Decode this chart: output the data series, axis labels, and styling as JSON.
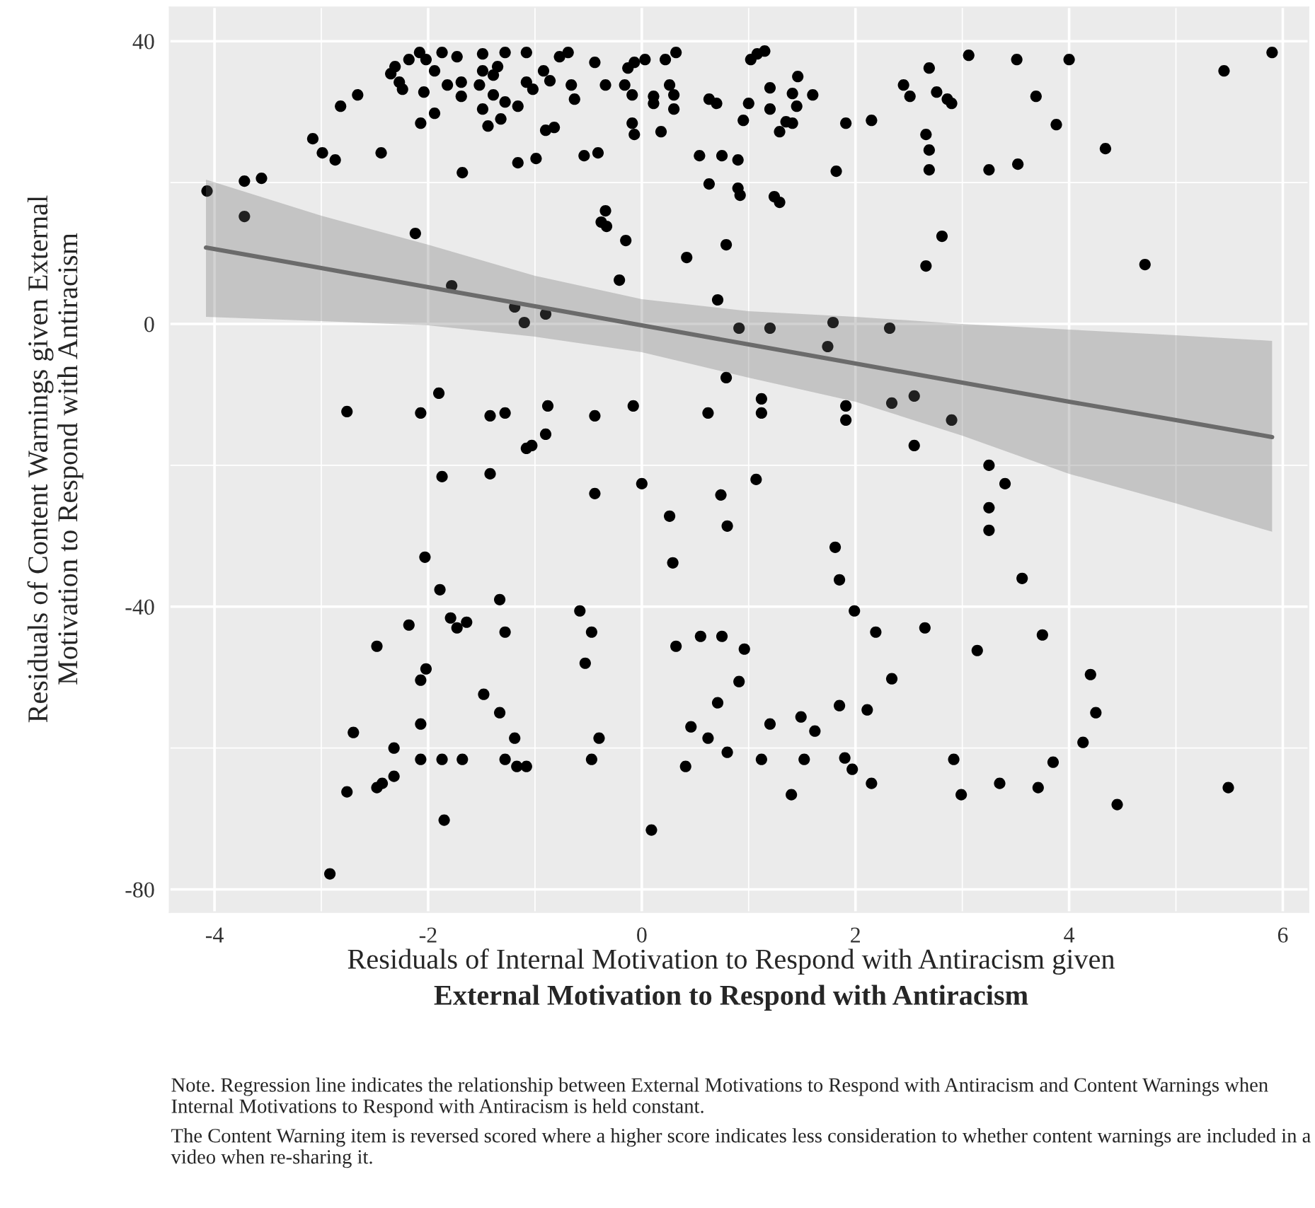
{
  "chart_data": {
    "type": "scatter",
    "xlabel": "Residuals of Internal Motivation to Respond with Antiracism given\nExternal Motivation to Respond with Antiracism",
    "ylabel": "Residuals of Content Warnings given External\nMotivation to Respond with Antiracism",
    "xlim": [
      -4.42,
      6.24
    ],
    "xticks": [
      -4,
      -2,
      0,
      2,
      4,
      6
    ],
    "ylim": [
      -83.2,
      44.8
    ],
    "yticks": [
      -80,
      -40,
      0,
      40
    ],
    "grid": true,
    "marker": "circle",
    "series": [
      {
        "color": "#000000",
        "x": [
          -4.07,
          -3.72,
          -3.56,
          -3.72,
          -3.08,
          -2.99,
          -2.87,
          -2.82,
          -2.66,
          -2.44,
          -2.12,
          -1.78,
          -1.68,
          -1.16,
          -0.99,
          -1.19,
          -1.1,
          -0.9,
          -2.35,
          -2.31,
          -2.27,
          -2.24,
          -2.18,
          -2.08,
          -2.02,
          -1.94,
          -2.04,
          -1.87,
          -1.73,
          -1.82,
          -1.69,
          -1.69,
          -1.94,
          -2.07,
          -1.49,
          -1.49,
          -1.52,
          -1.39,
          -1.35,
          -1.28,
          -1.39,
          -1.28,
          -1.49,
          -1.32,
          -1.44,
          -1.16,
          -1.08,
          -1.08,
          -1.02,
          -0.92,
          -0.9,
          -0.77,
          -0.69,
          -0.86,
          -0.44,
          -0.66,
          -0.63,
          -0.34,
          -0.13,
          -0.07,
          0.03,
          -0.16,
          -0.09,
          0.11,
          0.11,
          0.22,
          0.32,
          0.26,
          0.3,
          0.3,
          -0.82,
          -0.09,
          -0.07,
          0.18,
          -0.54,
          -0.41,
          -0.34,
          -0.38,
          -0.33,
          -0.15,
          -0.21,
          0.42,
          0.79,
          0.71,
          0.63,
          0.7,
          0.54,
          0.75,
          0.9,
          0.63,
          0.9,
          0.92,
          1.24,
          1.29,
          1.02,
          1.08,
          1.15,
          1.0,
          0.95,
          1.2,
          1.2,
          1.41,
          1.46,
          1.45,
          1.6,
          1.35,
          1.41,
          1.29,
          1.82,
          1.91,
          2.15,
          2.45,
          2.51,
          2.69,
          2.66,
          2.69,
          2.69,
          2.66,
          0.91,
          1.2,
          1.79,
          1.74,
          2.32,
          3.06,
          3.51,
          4.0,
          5.9,
          5.45,
          2.76,
          2.86,
          2.9,
          3.69,
          3.88,
          4.34,
          3.25,
          3.52,
          2.81,
          4.71,
          -2.76,
          -2.07,
          -1.9,
          -1.42,
          -1.28,
          -0.88,
          -0.9,
          -1.08,
          -1.03,
          -1.87,
          -1.42,
          -2.03,
          -1.89,
          -1.33,
          -2.18,
          -1.79,
          -1.73,
          -1.64,
          -1.28,
          -2.48,
          -2.02,
          -2.07,
          -1.48,
          -1.33,
          -1.19,
          -2.7,
          -2.32,
          -2.07,
          -2.07,
          -1.87,
          -1.68,
          -1.28,
          -1.17,
          -1.08,
          -2.32,
          -2.43,
          -2.48,
          -2.76,
          -1.85,
          -2.92,
          -0.44,
          -0.08,
          0.62,
          0.79,
          1.12,
          1.12,
          1.91,
          1.91,
          2.34,
          2.55,
          2.55,
          -0.44,
          0.0,
          0.74,
          1.07,
          0.26,
          0.8,
          0.29,
          1.81,
          1.85,
          -0.58,
          -0.47,
          -0.53,
          1.99,
          2.19,
          2.65,
          0.32,
          0.55,
          0.75,
          0.96,
          0.91,
          2.34,
          0.71,
          1.85,
          2.11,
          1.49,
          1.62,
          1.2,
          0.46,
          0.62,
          -0.4,
          -0.47,
          0.41,
          0.8,
          1.12,
          1.52,
          1.9,
          1.97,
          2.15,
          1.4,
          0.09,
          2.9,
          3.25,
          3.4,
          3.25,
          3.25,
          3.56,
          3.75,
          3.14,
          4.2,
          4.25,
          4.13,
          2.92,
          3.85,
          2.99,
          3.35,
          3.71,
          4.45,
          5.49
        ],
        "values": [
          18.8,
          20.2,
          20.6,
          15.2,
          26.2,
          24.2,
          23.2,
          30.8,
          32.4,
          24.2,
          12.8,
          5.4,
          21.4,
          22.8,
          23.4,
          2.4,
          0.2,
          1.4,
          35.4,
          36.4,
          34.2,
          33.2,
          37.4,
          38.4,
          37.4,
          35.8,
          32.8,
          38.4,
          37.8,
          33.8,
          34.2,
          32.2,
          29.8,
          28.4,
          38.2,
          35.8,
          33.8,
          35.2,
          36.4,
          38.4,
          32.4,
          31.4,
          30.4,
          29.0,
          28.0,
          30.8,
          38.4,
          34.2,
          33.2,
          35.8,
          27.4,
          37.8,
          38.4,
          34.4,
          37.0,
          33.8,
          31.8,
          33.8,
          36.2,
          37.0,
          37.4,
          33.8,
          32.4,
          32.2,
          31.2,
          37.4,
          38.4,
          33.8,
          32.4,
          30.4,
          27.8,
          28.4,
          26.8,
          27.2,
          23.8,
          24.2,
          16.0,
          14.4,
          13.8,
          11.8,
          6.2,
          9.4,
          11.2,
          3.4,
          31.8,
          31.2,
          23.8,
          23.8,
          23.2,
          19.8,
          19.2,
          18.2,
          18.0,
          17.2,
          37.4,
          38.2,
          38.6,
          31.2,
          28.8,
          33.4,
          30.4,
          32.6,
          35.0,
          30.8,
          32.4,
          28.6,
          28.4,
          27.2,
          21.6,
          28.4,
          28.8,
          33.8,
          32.2,
          36.2,
          26.8,
          24.6,
          21.8,
          8.2,
          -0.6,
          -0.6,
          0.2,
          -3.2,
          -0.6,
          38.0,
          37.4,
          37.4,
          38.4,
          35.8,
          32.8,
          31.8,
          31.2,
          32.2,
          28.2,
          24.8,
          21.8,
          22.6,
          12.4,
          8.4,
          -12.4,
          -12.6,
          -9.8,
          -13.0,
          -12.6,
          -11.6,
          -15.6,
          -17.6,
          -17.2,
          -21.6,
          -21.2,
          -33.0,
          -37.6,
          -39.0,
          -42.6,
          -41.6,
          -43.0,
          -42.2,
          -43.6,
          -45.6,
          -48.8,
          -50.4,
          -52.4,
          -55.0,
          -58.6,
          -57.8,
          -60.0,
          -56.6,
          -61.6,
          -61.6,
          -61.6,
          -61.6,
          -62.6,
          -62.6,
          -64.0,
          -65.0,
          -65.6,
          -66.2,
          -70.2,
          -77.8,
          -13.0,
          -11.6,
          -12.6,
          -7.6,
          -10.6,
          -12.6,
          -11.6,
          -13.6,
          -11.2,
          -10.2,
          -17.2,
          -24.0,
          -22.6,
          -24.2,
          -22.0,
          -27.2,
          -28.6,
          -33.8,
          -31.6,
          -36.2,
          -40.6,
          -43.6,
          -48.0,
          -40.6,
          -43.6,
          -43.0,
          -45.6,
          -44.2,
          -44.2,
          -46.0,
          -50.6,
          -50.2,
          -53.6,
          -54.0,
          -54.6,
          -55.6,
          -57.6,
          -56.6,
          -57.0,
          -58.6,
          -58.6,
          -61.6,
          -62.6,
          -60.6,
          -61.6,
          -61.6,
          -61.4,
          -63.0,
          -65.0,
          -66.6,
          -71.6,
          -13.6,
          -20.0,
          -22.6,
          -26.0,
          -29.2,
          -36.0,
          -44.0,
          -46.2,
          -49.6,
          -55.0,
          -59.2,
          -61.6,
          -62.0,
          -66.6,
          -65.0,
          -65.6,
          -68.0,
          -65.6
        ]
      },
      {
        "type": "line",
        "color": "#6b6b6b",
        "marker": "none",
        "line_style": "solid",
        "x": [
          -4.08,
          -3,
          -2,
          -1,
          0,
          1,
          2,
          3,
          4,
          5,
          5.9
        ],
        "values": [
          10.8,
          7.9,
          5.2,
          2.5,
          -0.2,
          -2.9,
          -5.6,
          -8.3,
          -11.0,
          -13.6,
          -16.0
        ],
        "lower": [
          1.0,
          0.4,
          -0.2,
          -1.8,
          -4.0,
          -7.6,
          -11.0,
          -15.8,
          -21.2,
          -25.4,
          -29.4
        ],
        "upper": [
          20.4,
          15.3,
          11.2,
          6.8,
          3.5,
          1.8,
          1.0,
          0.0,
          -0.8,
          -1.6,
          -2.4
        ]
      }
    ],
    "annotations": [
      "Note. Regression line indicates the relationship between External Motivations to Respond with Antiracism and Content Warnings when Internal Motivations to Respond with Antiracism is held constant.",
      "The Content Warning item is reversed scored where a higher score indicates less consideration to whether content warnings are included in a video when re-sharing it."
    ]
  }
}
